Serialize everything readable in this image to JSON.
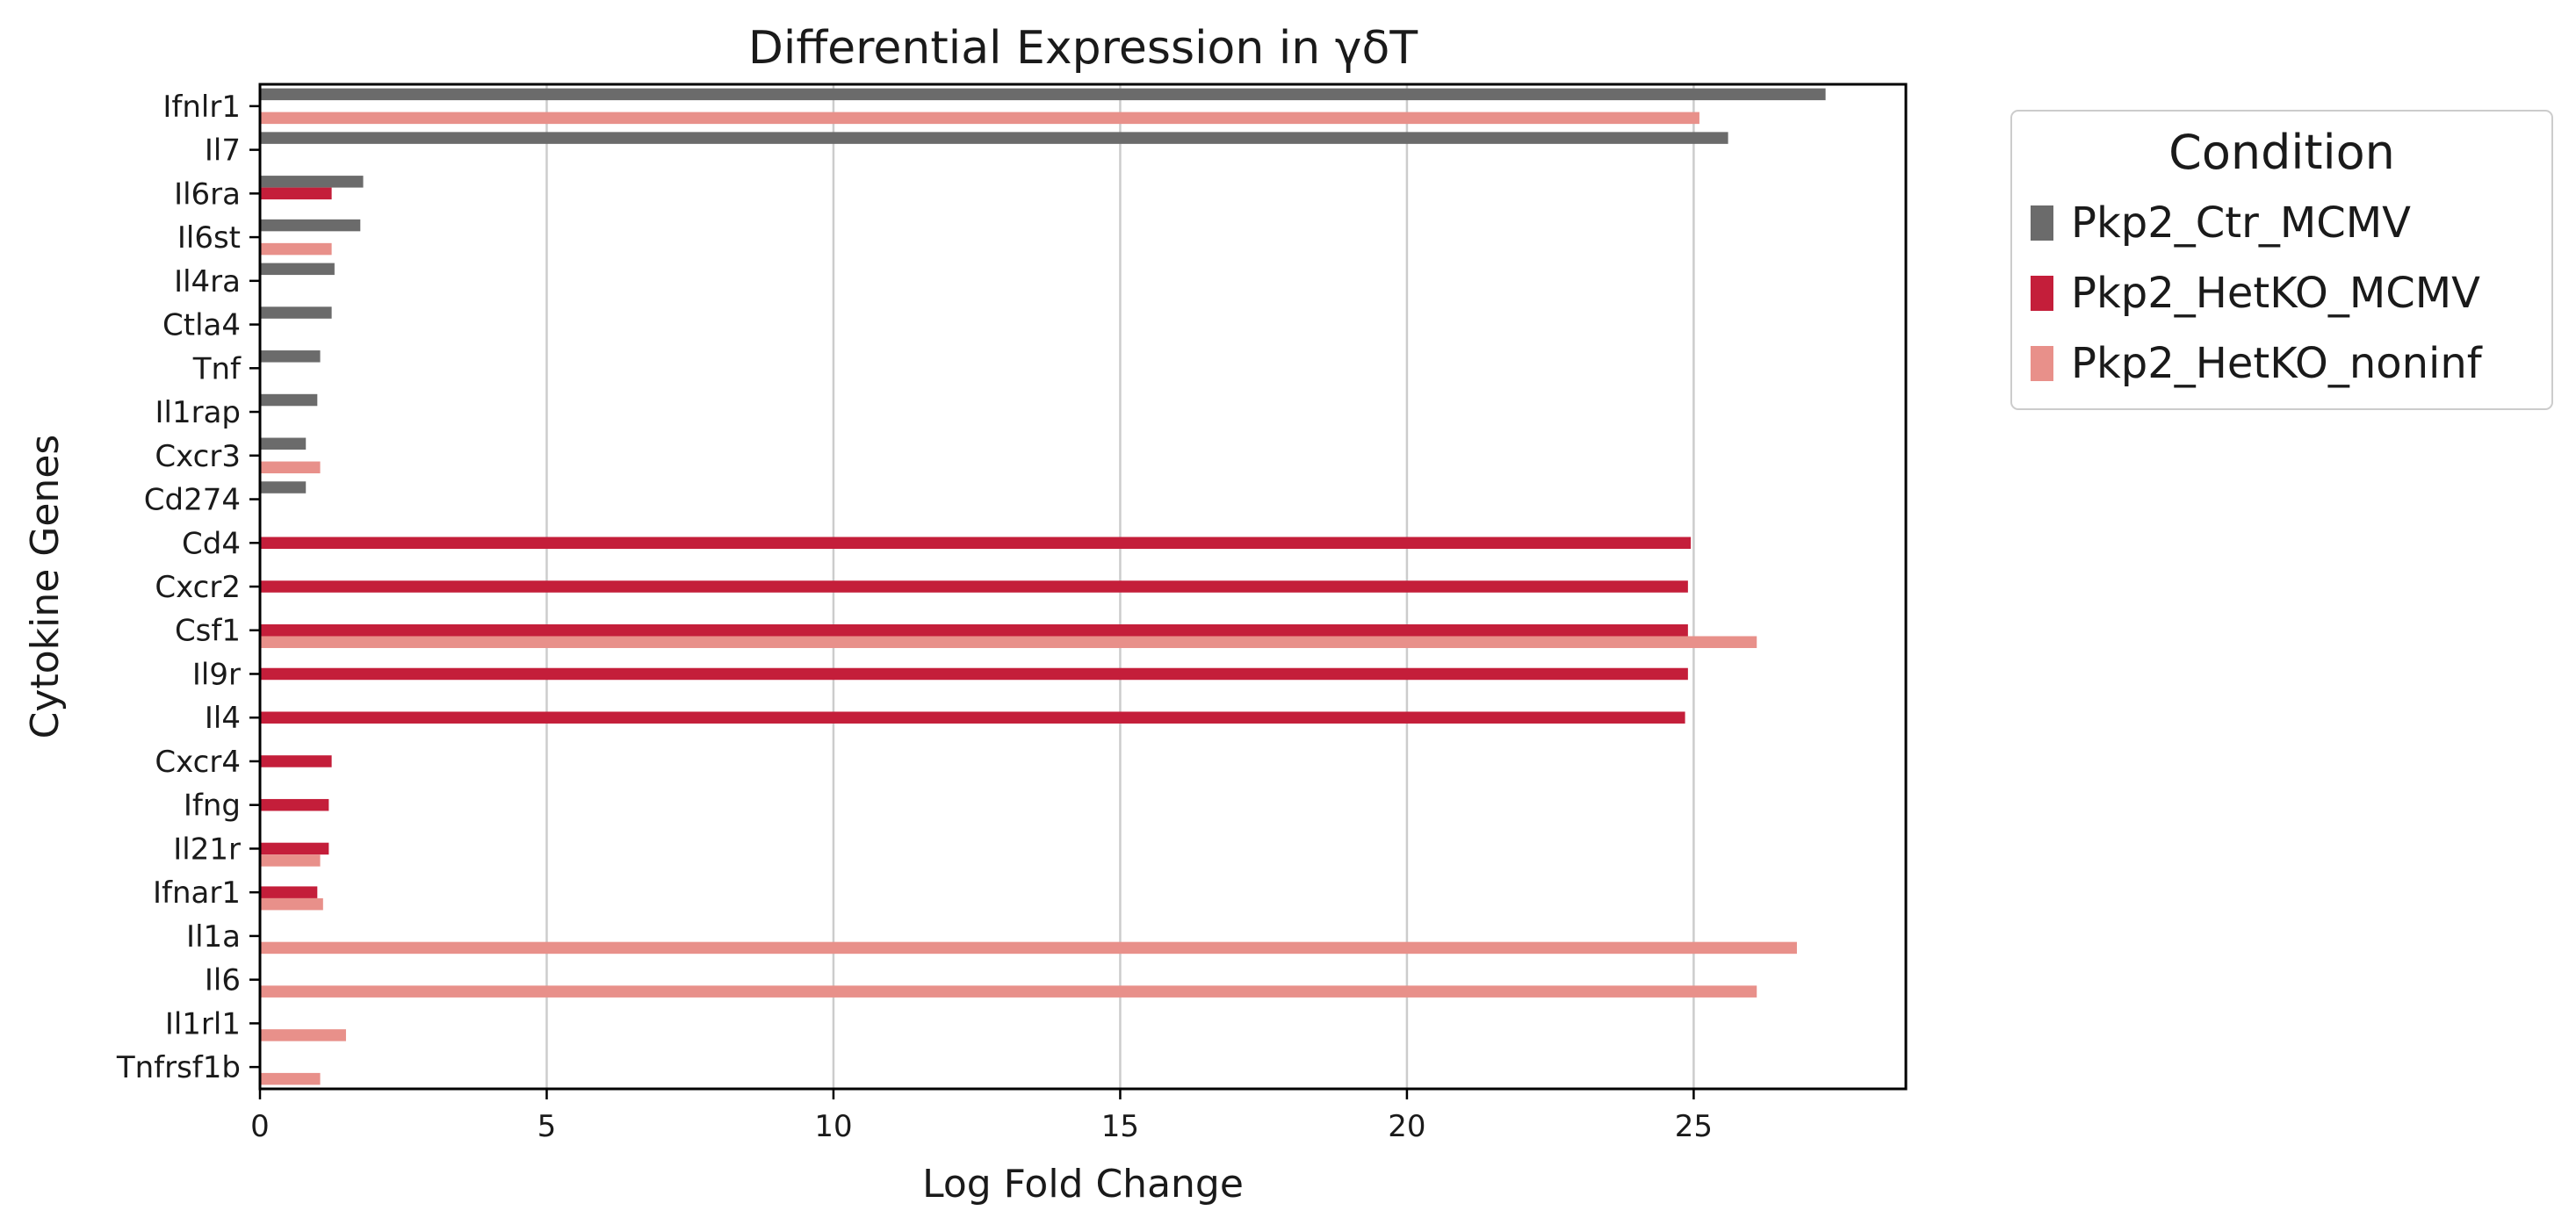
{
  "chart_data": {
    "type": "bar",
    "orientation": "horizontal",
    "title": "Differential Expression in γδT",
    "xlabel": "Log Fold Change",
    "ylabel": "Cytokine Genes",
    "xlim": [
      0,
      28.7
    ],
    "xticks": [
      0,
      5,
      10,
      15,
      20,
      25
    ],
    "grid": "x",
    "legend": {
      "title": "Condition",
      "placement": "outside-top-right"
    },
    "categories": [
      "Ifnlr1",
      "Il7",
      "Il6ra",
      "Il6st",
      "Il4ra",
      "Ctla4",
      "Tnf",
      "Il1rap",
      "Cxcr3",
      "Cd274",
      "Cd4",
      "Cxcr2",
      "Csf1",
      "Il9r",
      "Il4",
      "Cxcr4",
      "Ifng",
      "Il21r",
      "Ifnar1",
      "Il1a",
      "Il6",
      "Il1rl1",
      "Tnfrsf1b"
    ],
    "series": [
      {
        "name": "Pkp2_Ctr_MCMV",
        "color": "#6b6b6b",
        "values": [
          27.3,
          25.6,
          1.8,
          1.75,
          1.3,
          1.25,
          1.05,
          1.0,
          0.8,
          0.8,
          null,
          null,
          null,
          null,
          null,
          null,
          null,
          null,
          null,
          null,
          null,
          null,
          null
        ]
      },
      {
        "name": "Pkp2_HetKO_MCMV",
        "color": "#c41e3a",
        "values": [
          null,
          null,
          1.25,
          null,
          null,
          null,
          null,
          null,
          null,
          null,
          24.95,
          24.9,
          24.9,
          24.9,
          24.85,
          1.25,
          1.2,
          1.2,
          1.0,
          null,
          null,
          null,
          null
        ]
      },
      {
        "name": "Pkp2_HetKO_noninf",
        "color": "#e8908a",
        "values": [
          25.1,
          null,
          null,
          1.25,
          null,
          null,
          null,
          null,
          1.05,
          null,
          null,
          null,
          26.1,
          null,
          null,
          null,
          null,
          1.05,
          1.1,
          26.8,
          26.1,
          1.5,
          1.05
        ]
      }
    ]
  }
}
